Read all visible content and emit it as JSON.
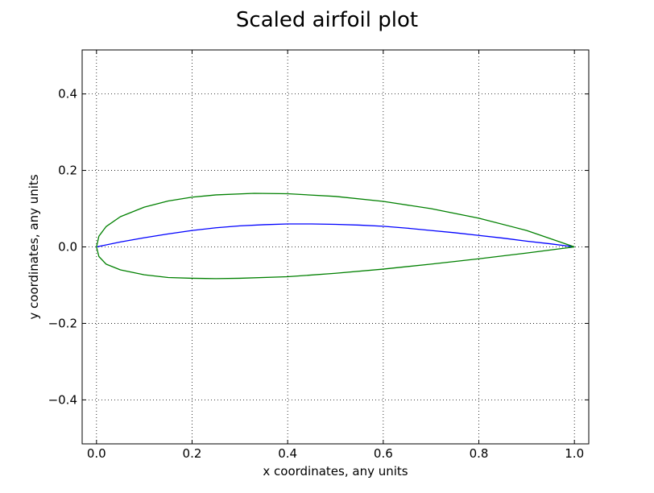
{
  "chart_data": {
    "type": "line",
    "title": "Scaled airfoil plot",
    "xlabel": "x coordinates, any units",
    "ylabel": "y coordinates, any units",
    "xlim": [
      -0.03,
      1.03
    ],
    "ylim": [
      -0.515,
      0.515
    ],
    "xticks": [
      0.0,
      0.2,
      0.4,
      0.6,
      0.8,
      1.0
    ],
    "xtick_labels": [
      "0.0",
      "0.2",
      "0.4",
      "0.6",
      "0.8",
      "1.0"
    ],
    "yticks": [
      -0.4,
      -0.2,
      0.0,
      0.2,
      0.4
    ],
    "ytick_labels": [
      "−0.4",
      "−0.2",
      "0.0",
      "0.2",
      "0.4"
    ],
    "grid": true,
    "series": [
      {
        "color": "#0000ff",
        "points": [
          [
            0.0,
            0.0
          ],
          [
            0.05,
            0.013
          ],
          [
            0.1,
            0.024
          ],
          [
            0.15,
            0.034
          ],
          [
            0.2,
            0.043
          ],
          [
            0.25,
            0.05
          ],
          [
            0.3,
            0.055
          ],
          [
            0.35,
            0.058
          ],
          [
            0.4,
            0.06
          ],
          [
            0.45,
            0.06
          ],
          [
            0.5,
            0.059
          ],
          [
            0.55,
            0.057
          ],
          [
            0.6,
            0.054
          ],
          [
            0.65,
            0.049
          ],
          [
            0.7,
            0.043
          ],
          [
            0.75,
            0.037
          ],
          [
            0.8,
            0.03
          ],
          [
            0.85,
            0.023
          ],
          [
            0.9,
            0.015
          ],
          [
            0.95,
            0.008
          ],
          [
            1.0,
            0.0
          ]
        ]
      },
      {
        "color": "#008000",
        "points": [
          [
            1.0,
            0.0
          ],
          [
            0.9,
            0.043
          ],
          [
            0.8,
            0.075
          ],
          [
            0.7,
            0.1
          ],
          [
            0.6,
            0.119
          ],
          [
            0.5,
            0.132
          ],
          [
            0.4,
            0.139
          ],
          [
            0.33,
            0.14
          ],
          [
            0.25,
            0.136
          ],
          [
            0.2,
            0.13
          ],
          [
            0.15,
            0.12
          ],
          [
            0.1,
            0.104
          ],
          [
            0.05,
            0.079
          ],
          [
            0.02,
            0.053
          ],
          [
            0.005,
            0.028
          ],
          [
            0.0,
            0.0
          ],
          [
            0.005,
            -0.025
          ],
          [
            0.02,
            -0.045
          ],
          [
            0.05,
            -0.06
          ],
          [
            0.1,
            -0.073
          ],
          [
            0.15,
            -0.08
          ],
          [
            0.2,
            -0.082
          ],
          [
            0.25,
            -0.083
          ],
          [
            0.3,
            -0.082
          ],
          [
            0.4,
            -0.078
          ],
          [
            0.5,
            -0.069
          ],
          [
            0.6,
            -0.058
          ],
          [
            0.7,
            -0.045
          ],
          [
            0.8,
            -0.031
          ],
          [
            0.9,
            -0.016
          ],
          [
            1.0,
            0.0
          ]
        ]
      }
    ]
  }
}
